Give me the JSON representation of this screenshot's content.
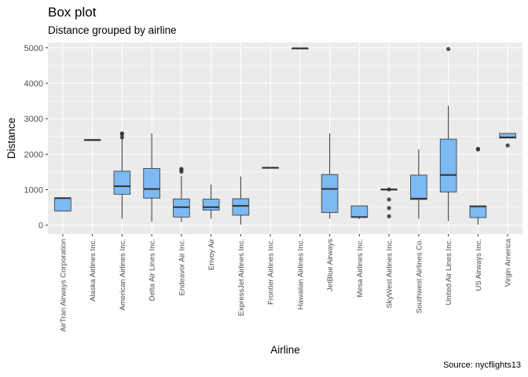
{
  "title": "Box plot",
  "subtitle": "Distance grouped by airline",
  "caption": "Source: nycflights13",
  "colors": {
    "panel": "#ebebeb",
    "grid_major": "#ffffff",
    "box_fill": "#7db9f3",
    "box_stroke": "#333333",
    "outlier": "#333333"
  },
  "chart_data": {
    "type": "box",
    "xlabel": "Airline",
    "ylabel": "Distance",
    "ylim": [
      -250,
      5150
    ],
    "yticks": [
      0,
      1000,
      2000,
      3000,
      4000,
      5000
    ],
    "grid": true,
    "categories": [
      "AirTran Airways Corporation",
      "Alaska Airlines Inc.",
      "American Airlines Inc.",
      "Delta Air Lines Inc.",
      "Endeavor Air Inc.",
      "Envoy Air",
      "ExpressJet Airlines Inc.",
      "Frontier Airlines Inc.",
      "Hawaiian Airlines Inc.",
      "JetBlue Airways",
      "Mesa Airlines Inc.",
      "SkyWest Airlines Inc.",
      "Southwest Airlines Co.",
      "United Air Lines Inc.",
      "US Airways Inc.",
      "Virgin America"
    ],
    "boxes": [
      {
        "min": 397,
        "q1": 397,
        "median": 762,
        "q3": 762,
        "max": 762,
        "outliers": []
      },
      {
        "min": 2402,
        "q1": 2402,
        "median": 2402,
        "q3": 2402,
        "max": 2402,
        "outliers": []
      },
      {
        "min": 187,
        "q1": 871,
        "median": 1096,
        "q3": 1521,
        "max": 2475,
        "outliers": [
          2586,
          2475,
          2565
        ]
      },
      {
        "min": 94,
        "q1": 762,
        "median": 1020,
        "q3": 1598,
        "max": 2586,
        "outliers": []
      },
      {
        "min": 94,
        "q1": 229,
        "median": 509,
        "q3": 740,
        "max": 1391,
        "outliers": [
          1505,
          1587,
          1552
        ]
      },
      {
        "min": 184,
        "q1": 425,
        "median": 509,
        "q3": 733,
        "max": 1147,
        "outliers": []
      },
      {
        "min": 17,
        "q1": 281,
        "median": 544,
        "q3": 745,
        "max": 1372,
        "outliers": []
      },
      {
        "min": 1620,
        "q1": 1620,
        "median": 1620,
        "q3": 1620,
        "max": 1620,
        "outliers": []
      },
      {
        "min": 4983,
        "q1": 4983,
        "median": 4983,
        "q3": 4983,
        "max": 4983,
        "outliers": []
      },
      {
        "min": 187,
        "q1": 355,
        "median": 1023,
        "q3": 1428,
        "max": 2586,
        "outliers": []
      },
      {
        "min": 173,
        "q1": 229,
        "median": 229,
        "q3": 544,
        "max": 544,
        "outliers": []
      },
      {
        "min": 1008,
        "q1": 1008,
        "median": 1008,
        "q3": 1008,
        "max": 1008,
        "outliers": [
          1008,
          725,
          483,
          251
        ]
      },
      {
        "min": 184,
        "q1": 725,
        "median": 748,
        "q3": 1411,
        "max": 2133,
        "outliers": []
      },
      {
        "min": 116,
        "q1": 937,
        "median": 1416,
        "q3": 2425,
        "max": 3370,
        "outliers": [
          4963
        ]
      },
      {
        "min": 17,
        "q1": 213,
        "median": 529,
        "q3": 541,
        "max": 541,
        "outliers": [
          2153,
          2133
        ]
      },
      {
        "min": 2454,
        "q1": 2454,
        "median": 2475,
        "q3": 2586,
        "max": 2586,
        "outliers": [
          2248
        ]
      }
    ]
  }
}
